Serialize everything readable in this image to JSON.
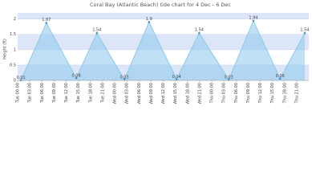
{
  "chart_data": {
    "type": "area",
    "title": "Coral Bay (Atlantic Beach) tide chart for 4 Dec - 6 Dec",
    "y_label": "Height (ft)",
    "xlim": [
      0,
      72
    ],
    "xticks": [
      {
        "value": 0,
        "label": "Tue 00:00"
      },
      {
        "value": 3,
        "label": "Tue 03:00"
      },
      {
        "value": 6,
        "label": "Tue 06:00"
      },
      {
        "value": 9,
        "label": "Tue 09:00"
      },
      {
        "value": 12,
        "label": "Tue 12:00"
      },
      {
        "value": 15,
        "label": "Tue 15:00"
      },
      {
        "value": 18,
        "label": "Tue 18:00"
      },
      {
        "value": 21,
        "label": "Tue 21:00"
      },
      {
        "value": 24,
        "label": "Wed 00:00"
      },
      {
        "value": 27,
        "label": "Wed 03:00"
      },
      {
        "value": 30,
        "label": "Wed 06:00"
      },
      {
        "value": 33,
        "label": "Wed 09:00"
      },
      {
        "value": 36,
        "label": "Wed 12:00"
      },
      {
        "value": 39,
        "label": "Wed 15:00"
      },
      {
        "value": 42,
        "label": "Wed 18:00"
      },
      {
        "value": 45,
        "label": "Wed 21:00"
      },
      {
        "value": 48,
        "label": "Thu 00:00"
      },
      {
        "value": 51,
        "label": "Thu 03:00"
      },
      {
        "value": 54,
        "label": "Thu 06:00"
      },
      {
        "value": 57,
        "label": "Thu 09:00"
      },
      {
        "value": 60,
        "label": "Thu 12:00"
      },
      {
        "value": 63,
        "label": "Thu 15:00"
      },
      {
        "value": 66,
        "label": "Thu 18:00"
      },
      {
        "value": 69,
        "label": "Thu 21:00"
      }
    ],
    "ylim": [
      0,
      2.2
    ],
    "yticks": [
      0,
      0.5,
      1,
      1.5,
      2
    ],
    "x": [
      0.8,
      7.1,
      14.5,
      19.6,
      26.4,
      32.5,
      39.3,
      44.9,
      52.2,
      58.3,
      64.9,
      71
    ],
    "values": [
      0.01,
      1.87,
      0.08,
      1.54,
      0.03,
      1.9,
      0.04,
      1.54,
      0.03,
      1.94,
      0.06,
      1.54
    ],
    "color": "#8cc8ec",
    "band_color": "#dde6f8"
  }
}
